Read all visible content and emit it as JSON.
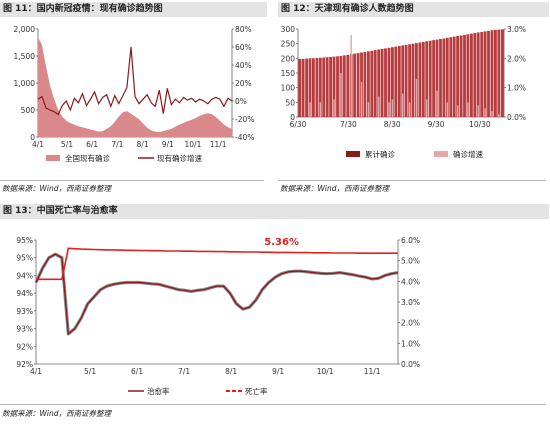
{
  "source_note": "数据来源：Wind，西南证券整理",
  "colors": {
    "maroon": "#8B1A1A",
    "pink_fill": "#D9898B",
    "pink_line": "#E8A6A8",
    "red": "#E02020",
    "grey_line": "#8a8a8a"
  },
  "chart_data": [
    {
      "type": "area",
      "title": "图 11：国内新冠疫情：现有确诊趋势图",
      "x_ticks": [
        "4/1",
        "5/1",
        "6/1",
        "7/1",
        "8/1",
        "9/1",
        "10/1",
        "11/1"
      ],
      "left_axis": {
        "ticks": [
          "0",
          "500",
          "1,000",
          "1,500",
          "2,000"
        ],
        "ylim": [
          0,
          2000
        ]
      },
      "right_axis": {
        "ticks": [
          "-40%",
          "-20%",
          "0%",
          "20%",
          "40%",
          "60%",
          "80%"
        ],
        "ylim": [
          -40,
          80
        ]
      },
      "series": [
        {
          "name": "全国现有确诊",
          "kind": "area",
          "axis": "left",
          "values": [
            1850,
            1700,
            1300,
            950,
            700,
            500,
            380,
            300,
            260,
            230,
            200,
            180,
            160,
            140,
            120,
            100,
            110,
            150,
            200,
            280,
            380,
            460,
            480,
            430,
            380,
            330,
            250,
            170,
            120,
            100,
            90,
            110,
            130,
            150,
            190,
            230,
            260,
            290,
            320,
            350,
            390,
            420,
            440,
            420,
            370,
            300,
            230,
            180,
            150
          ]
        },
        {
          "name": "现有确诊增速",
          "kind": "line",
          "axis": "right",
          "values": [
            2,
            5,
            -8,
            -10,
            -12,
            -15,
            -5,
            0,
            -10,
            3,
            -2,
            8,
            -5,
            2,
            10,
            -3,
            4,
            7,
            -6,
            6,
            -3,
            6,
            15,
            60,
            5,
            -3,
            2,
            7,
            -2,
            -6,
            12,
            -14,
            14,
            -4,
            2,
            -2,
            4,
            1,
            3,
            -1,
            2,
            0,
            -3,
            2,
            4,
            2,
            -6,
            3,
            0
          ]
        }
      ]
    },
    {
      "type": "bar",
      "title": "图 12：天津现有确诊人数趋势图",
      "x_ticks": [
        "6/30",
        "7/30",
        "8/30",
        "9/30",
        "10/30"
      ],
      "left_axis": {
        "ticks": [
          "0",
          "50",
          "100",
          "150",
          "200",
          "250",
          "300"
        ],
        "ylim": [
          0,
          300
        ]
      },
      "right_axis": {
        "ticks": [
          "0.0%",
          "1.0%",
          "2.0%",
          "3.0%"
        ],
        "ylim": [
          0,
          3
        ]
      },
      "series": [
        {
          "name": "累计确诊",
          "kind": "bar",
          "axis": "left",
          "values": [
            198,
            198,
            199,
            200,
            200,
            201,
            202,
            203,
            204,
            205,
            206,
            207,
            208,
            210,
            212,
            214,
            216,
            218,
            220,
            222,
            224,
            226,
            228,
            230,
            232,
            234,
            236,
            238,
            240,
            242,
            244,
            246,
            248,
            250,
            252,
            254,
            256,
            258,
            260,
            262,
            264,
            266,
            268,
            270,
            272,
            274,
            276,
            278,
            280,
            282,
            284,
            286,
            288,
            290,
            292,
            294,
            296,
            297,
            298,
            299
          ]
        },
        {
          "name": "确诊增速",
          "kind": "bar",
          "axis": "right",
          "values": [
            0,
            0,
            0,
            0.5,
            0,
            0,
            0.5,
            0,
            0,
            0,
            0.6,
            0,
            1.5,
            0,
            0,
            2.8,
            0,
            0,
            1.2,
            0,
            0.5,
            0,
            0,
            0.7,
            0,
            0,
            0.5,
            0.6,
            0,
            0,
            0.8,
            0,
            0.5,
            0,
            1.3,
            0,
            0,
            0.6,
            0,
            0,
            0.9,
            0,
            0,
            0.5,
            0,
            0,
            0.4,
            0,
            0,
            0.5,
            0,
            0,
            0.4,
            0,
            0.3,
            0,
            0.2,
            0,
            0.1,
            0
          ]
        }
      ]
    },
    {
      "type": "line",
      "title": "图 13：中国死亡率与治愈率",
      "x_ticks": [
        "4/1",
        "5/1",
        "6/1",
        "7/1",
        "8/1",
        "9/1",
        "10/1",
        "11/1"
      ],
      "left_axis": {
        "ticks": [
          "92%",
          "92%",
          "93%",
          "93%",
          "94%",
          "94%",
          "95%",
          "95%"
        ],
        "ylim": [
          92,
          95.5
        ]
      },
      "right_axis": {
        "ticks": [
          "0.0%",
          "1.0%",
          "2.0%",
          "3.0%",
          "4.0%",
          "5.0%",
          "6.0%"
        ],
        "ylim": [
          0,
          6
        ]
      },
      "annotation": "5.36%",
      "series": [
        {
          "name": "治愈率",
          "kind": "line",
          "axis": "left",
          "values": [
            94.3,
            94.7,
            95.0,
            95.1,
            95.0,
            92.85,
            93.0,
            93.3,
            93.7,
            93.9,
            94.1,
            94.2,
            94.25,
            94.28,
            94.3,
            94.3,
            94.3,
            94.28,
            94.26,
            94.25,
            94.2,
            94.15,
            94.1,
            94.08,
            94.05,
            94.08,
            94.1,
            94.15,
            94.2,
            94.2,
            94.0,
            93.7,
            93.55,
            93.6,
            93.8,
            94.1,
            94.3,
            94.45,
            94.55,
            94.6,
            94.62,
            94.62,
            94.6,
            94.58,
            94.56,
            94.55,
            94.56,
            94.58,
            94.55,
            94.52,
            94.48,
            94.45,
            94.4,
            94.42,
            94.5,
            94.55,
            94.58
          ]
        },
        {
          "name": "死亡率",
          "kind": "dashed",
          "axis": "right",
          "values": [
            4.1,
            4.1,
            4.1,
            4.1,
            4.1,
            5.6,
            5.58,
            5.56,
            5.55,
            5.54,
            5.53,
            5.52,
            5.52,
            5.51,
            5.5,
            5.5,
            5.49,
            5.49,
            5.48,
            5.48,
            5.47,
            5.47,
            5.47,
            5.46,
            5.46,
            5.45,
            5.45,
            5.45,
            5.44,
            5.44,
            5.43,
            5.43,
            5.42,
            5.42,
            5.42,
            5.41,
            5.41,
            5.4,
            5.4,
            5.4,
            5.39,
            5.39,
            5.39,
            5.38,
            5.38,
            5.38,
            5.37,
            5.37,
            5.37,
            5.37,
            5.36,
            5.36,
            5.36,
            5.36,
            5.36,
            5.36,
            5.36
          ]
        }
      ]
    }
  ]
}
